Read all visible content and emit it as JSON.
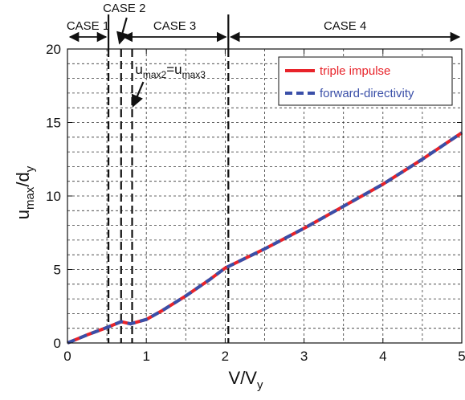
{
  "chart_data": {
    "type": "line",
    "xlim": [
      0,
      5
    ],
    "ylim": [
      0,
      20
    ],
    "x_ticks": [
      0,
      1,
      2,
      3,
      4,
      5
    ],
    "y_ticks": [
      0,
      5,
      10,
      15,
      20
    ],
    "xlabel": {
      "main": "V/V",
      "sub": "y"
    },
    "ylabel": {
      "main": "u",
      "sub1": "max",
      "mid": "/d",
      "sub2": "y"
    },
    "grid": "on (dashed, minor)",
    "legend_position": "top-right",
    "series": [
      {
        "name": "triple impulse",
        "color": "#e8232a",
        "style": "solid",
        "x": [
          0,
          0.25,
          0.5,
          0.68,
          0.8,
          1.0,
          1.2,
          1.5,
          1.8,
          2.0,
          2.5,
          3.0,
          3.5,
          4.0,
          4.5,
          5.0
        ],
        "y": [
          0,
          0.55,
          1.05,
          1.45,
          1.3,
          1.6,
          2.2,
          3.2,
          4.3,
          5.1,
          6.4,
          7.8,
          9.3,
          10.8,
          12.5,
          14.3
        ]
      },
      {
        "name": "forward-directivity",
        "color": "#3a4fa8",
        "style": "dashed",
        "x": [
          0,
          0.25,
          0.5,
          0.68,
          0.8,
          1.0,
          1.2,
          1.5,
          1.8,
          2.0,
          2.5,
          3.0,
          3.5,
          4.0,
          4.5,
          5.0
        ],
        "y": [
          0,
          0.55,
          1.05,
          1.45,
          1.3,
          1.6,
          2.2,
          3.2,
          4.3,
          5.1,
          6.4,
          7.8,
          9.3,
          10.8,
          12.5,
          14.3
        ]
      }
    ],
    "case_boundaries": [
      0.52,
      0.68,
      0.82,
      2.04
    ],
    "cases": [
      {
        "label": "CASE 1",
        "x_start": 0,
        "x_end": 0.52
      },
      {
        "label": "CASE 2",
        "x_point": 0.68
      },
      {
        "label": "CASE 3",
        "x_start": 0.68,
        "x_end": 2.04
      },
      {
        "label": "CASE 4",
        "x_start": 2.04,
        "x_end": 5
      }
    ],
    "annotation": {
      "main1": "u",
      "sub1": "max2",
      "mid": "=u",
      "sub2": "max3",
      "x": 0.88,
      "y": 18.3
    }
  }
}
